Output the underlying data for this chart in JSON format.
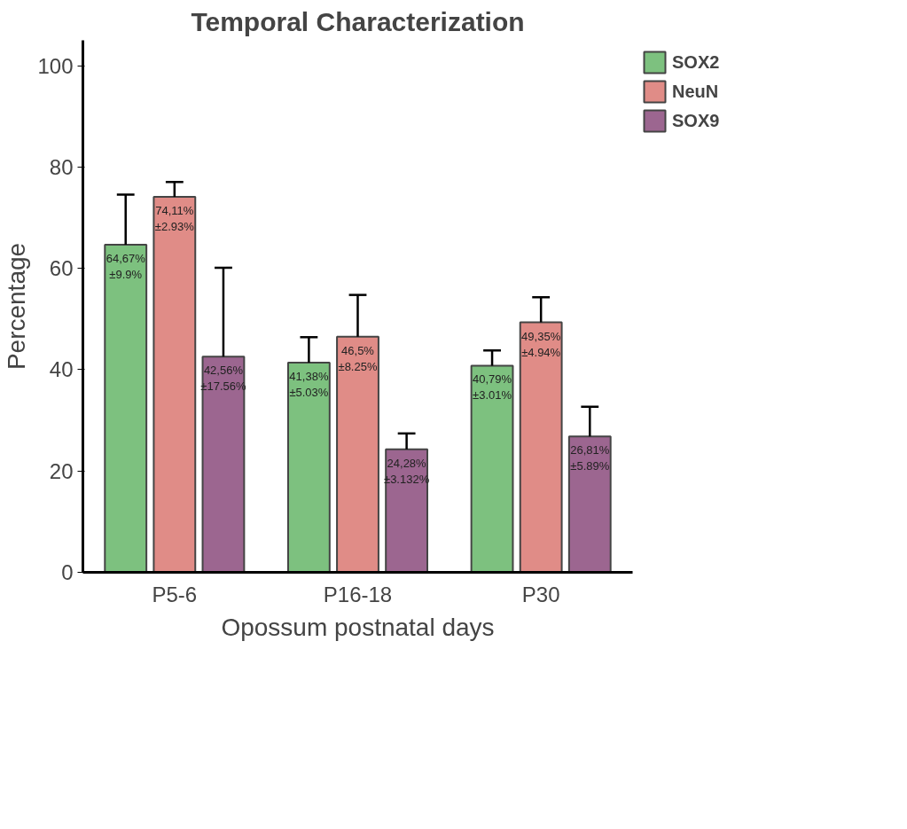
{
  "chart_data": {
    "type": "bar",
    "title": "Temporal Characterization",
    "xlabel": "Opossum postnatal days",
    "ylabel": "Percentage",
    "categories": [
      "P5-6",
      "P16-18",
      "P30"
    ],
    "series": [
      {
        "name": "SOX2",
        "color": "#7dc17f",
        "values": [
          64.67,
          41.38,
          40.79
        ],
        "errors": [
          [
            64.67,
            74.57
          ],
          [
            41.38,
            46.41
          ],
          [
            40.79,
            43.8
          ]
        ],
        "value_labels": [
          "64,67%\n±9.9%",
          "41,38%\n±5.03%",
          "40,79%\n±3.01%"
        ]
      },
      {
        "name": "NeuN",
        "color": "#e08c87",
        "values": [
          74.11,
          46.5,
          49.35
        ],
        "errors": [
          [
            74.11,
            77.04
          ],
          [
            46.5,
            54.75
          ],
          [
            49.35,
            54.29
          ]
        ],
        "value_labels": [
          "74,11%\n±2.93%",
          "46,5%\n±8.25%",
          "49,35%\n±4.94%"
        ]
      },
      {
        "name": "SOX9",
        "color": "#9c6690",
        "values": [
          42.56,
          24.28,
          26.81
        ],
        "errors": [
          [
            42.56,
            60.12
          ],
          [
            24.28,
            27.412
          ],
          [
            26.81,
            32.7
          ]
        ],
        "value_labels": [
          "42,56%\n±17.56%",
          "24,28%\n±3.132%",
          "26,81%\n±5.89%"
        ]
      }
    ],
    "ylim": [
      0,
      105
    ],
    "yticks": [
      0,
      20,
      40,
      60,
      80,
      100
    ],
    "grid": false,
    "legend": "top right"
  }
}
